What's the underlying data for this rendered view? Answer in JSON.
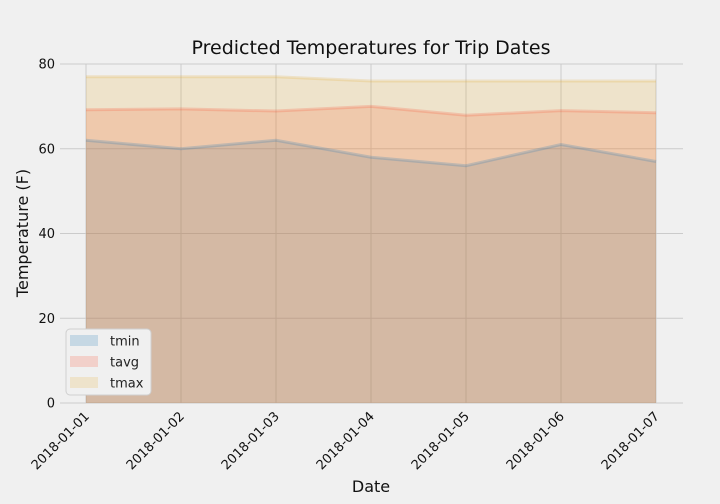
{
  "chart_data": {
    "type": "area",
    "title": "Predicted Temperatures for Trip Dates",
    "xlabel": "Date",
    "ylabel": "Temperature (F)",
    "categories": [
      "2018-01-01",
      "2018-01-02",
      "2018-01-03",
      "2018-01-04",
      "2018-01-05",
      "2018-01-06",
      "2018-01-07"
    ],
    "ylim": [
      0,
      80
    ],
    "yticks": [
      "0",
      "20",
      "40",
      "60",
      "80"
    ],
    "stacked": false,
    "grid": true,
    "legend_position": "lower-left",
    "series": [
      {
        "name": "tmin",
        "values": [
          62,
          60,
          62,
          58,
          56,
          61,
          57
        ],
        "color": "#1f77b4"
      },
      {
        "name": "tavg",
        "values": [
          69.2,
          69.4,
          68.9,
          70.0,
          67.9,
          69.0,
          68.5
        ],
        "color": "#fc4f30"
      },
      {
        "name": "tmax",
        "values": [
          77,
          77,
          77,
          76,
          76,
          76,
          76
        ],
        "color": "#e5ae38"
      }
    ]
  }
}
